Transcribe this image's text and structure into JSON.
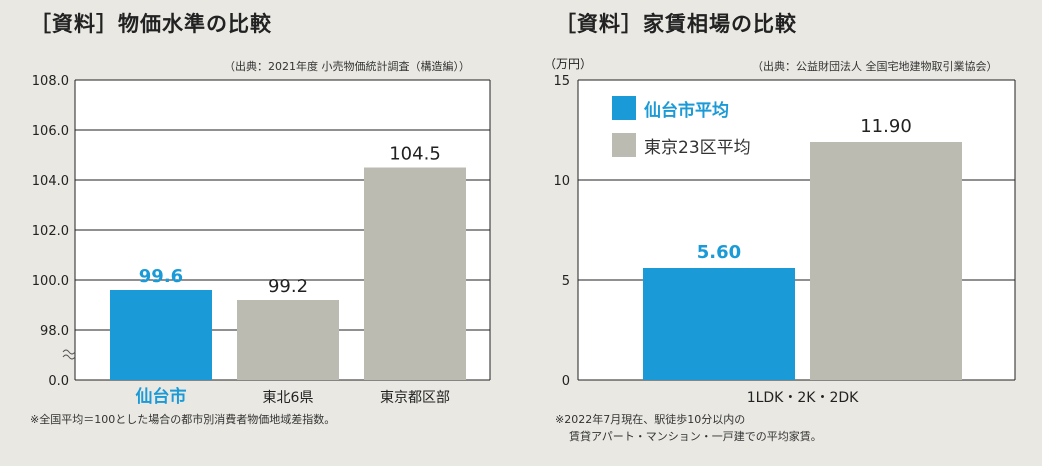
{
  "left": {
    "title": "［資料］物価水準の比較",
    "source": "（出典：2021年度 小売物価統計調査（構造編））",
    "note": "※全国平均＝100とした場合の都市別消費者物価地域差指数。"
  },
  "right": {
    "title": "［資料］家賃相場の比較",
    "source": "（出典：公益財団法人 全国宅地建物取引業協会）",
    "note_line1": "※2022年7月現在、駅徒歩10分以内の",
    "note_line2": "賃貸アパート・マンション・一戸建での平均家賃。"
  },
  "colors": {
    "highlight": "#1a9ad6",
    "other": "#bcbbb2",
    "grid": "#222222"
  },
  "chart_data": [
    {
      "type": "bar",
      "title": "［資料］物価水準の比較",
      "categories": [
        "仙台市",
        "東北6県",
        "東京都区部"
      ],
      "values": [
        99.6,
        99.2,
        104.5
      ],
      "value_labels": [
        "99.6",
        "99.2",
        "104.5"
      ],
      "highlight_index": 0,
      "yticks": [
        "108.0",
        "106.0",
        "104.0",
        "102.0",
        "100.0",
        "98.0",
        "0.0"
      ],
      "ylim": [
        96,
        108
      ],
      "axis_break": true,
      "grid": true
    },
    {
      "type": "bar",
      "title": "［資料］家賃相場の比較",
      "ylabel": "（万円）",
      "categories": [
        "1LDK・2K・2DK"
      ],
      "series": [
        {
          "name": "仙台市平均",
          "values": [
            5.6
          ]
        },
        {
          "name": "東京23区平均",
          "values": [
            11.9
          ]
        }
      ],
      "value_labels": [
        "5.60",
        "11.90"
      ],
      "yticks": [
        "15",
        "10",
        "5",
        "0"
      ],
      "ylim": [
        0,
        15
      ],
      "legend": "top-left",
      "grid": true
    }
  ]
}
